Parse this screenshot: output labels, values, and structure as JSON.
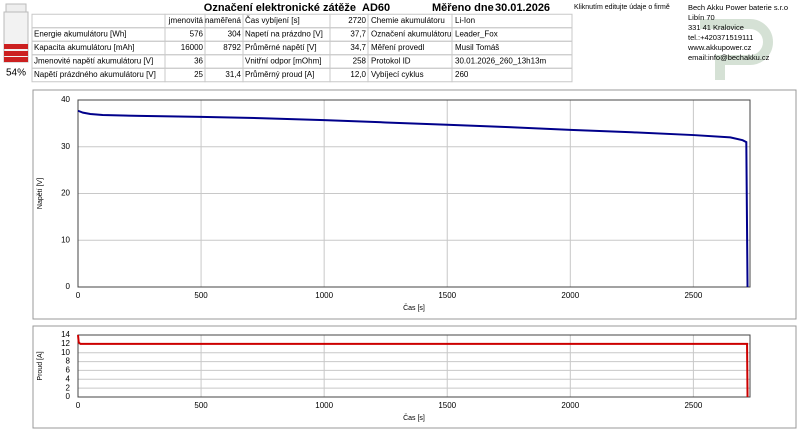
{
  "battery": {
    "level": "54%"
  },
  "header": {
    "load_label": "Označení elektronické zátěže",
    "load_id": "AD60",
    "date_label": "Měřeno dne",
    "date": "30.01.2026",
    "edit_hint": "Kliknutím editujte údaje o firmě"
  },
  "company": {
    "lines": [
      "Bech Akku Power baterie s.r.o",
      "Libín 70",
      "331 41 Kralovice",
      "tel.:+420371519111",
      "www.akkupower.cz",
      "email:info@bechakku.cz"
    ]
  },
  "table": {
    "rows": [
      [
        null,
        "jmenovitá",
        "naměřená",
        "Čas vybíjení [s]",
        "2720",
        "Chemie akumulátoru",
        "Li-Ion"
      ],
      [
        "Energie akumulátoru [Wh]",
        "576",
        "304",
        "Napetí na prázdno [V]",
        "37,7",
        "Označení akumulátoru",
        "Leader_Fox"
      ],
      [
        "Kapacita akumulátoru [mAh]",
        "16000",
        "8792",
        "Průměrné napětí [V]",
        "34,7",
        "Měření provedl",
        "Musil Tomáš"
      ],
      [
        "Jmenovité napětí akumulátoru [V]",
        "36",
        null,
        "Vnitřní odpor [mOhm]",
        "258",
        "Protokol ID",
        "30.01.2026_260_13h13m"
      ],
      [
        "Napětí prázdného akumulátoru [V]",
        "25",
        "31,4",
        "Průměrný proud [A]",
        "12,0",
        "Vybíjecí cyklus",
        "260"
      ]
    ]
  },
  "chart_data": [
    {
      "type": "line",
      "x_label": "Čas [s]",
      "y_label": "Napětí [V]",
      "x": [
        0,
        20,
        50,
        100,
        250,
        500,
        750,
        1000,
        1250,
        1500,
        1750,
        2000,
        2250,
        2500,
        2650,
        2700,
        2715,
        2720
      ],
      "series": [
        {
          "color": "#00008b",
          "values": [
            37.7,
            37.3,
            37.0,
            36.8,
            36.6,
            36.4,
            36.1,
            35.7,
            35.2,
            34.7,
            34.2,
            33.6,
            33.1,
            32.5,
            32.0,
            31.4,
            31.0,
            0
          ]
        }
      ],
      "xlim": [
        0,
        2730
      ],
      "xticks": [
        0,
        500,
        1000,
        1500,
        2000,
        2500
      ],
      "ylim": [
        0,
        40
      ],
      "yticks": [
        0,
        10,
        20,
        30,
        40
      ],
      "grid": true
    },
    {
      "type": "line",
      "x_label": "Čas [s]",
      "y_label": "Proud [A]",
      "x": [
        0,
        3,
        10,
        2718,
        2720
      ],
      "series": [
        {
          "color": "#cc0000",
          "values": [
            14,
            12.3,
            12,
            12,
            0
          ]
        }
      ],
      "xlim": [
        0,
        2730
      ],
      "xticks": [
        0,
        500,
        1000,
        1500,
        2000,
        2500
      ],
      "ylim": [
        0,
        14
      ],
      "yticks": [
        0,
        2,
        4,
        6,
        8,
        10,
        12,
        14
      ],
      "grid": true
    }
  ]
}
